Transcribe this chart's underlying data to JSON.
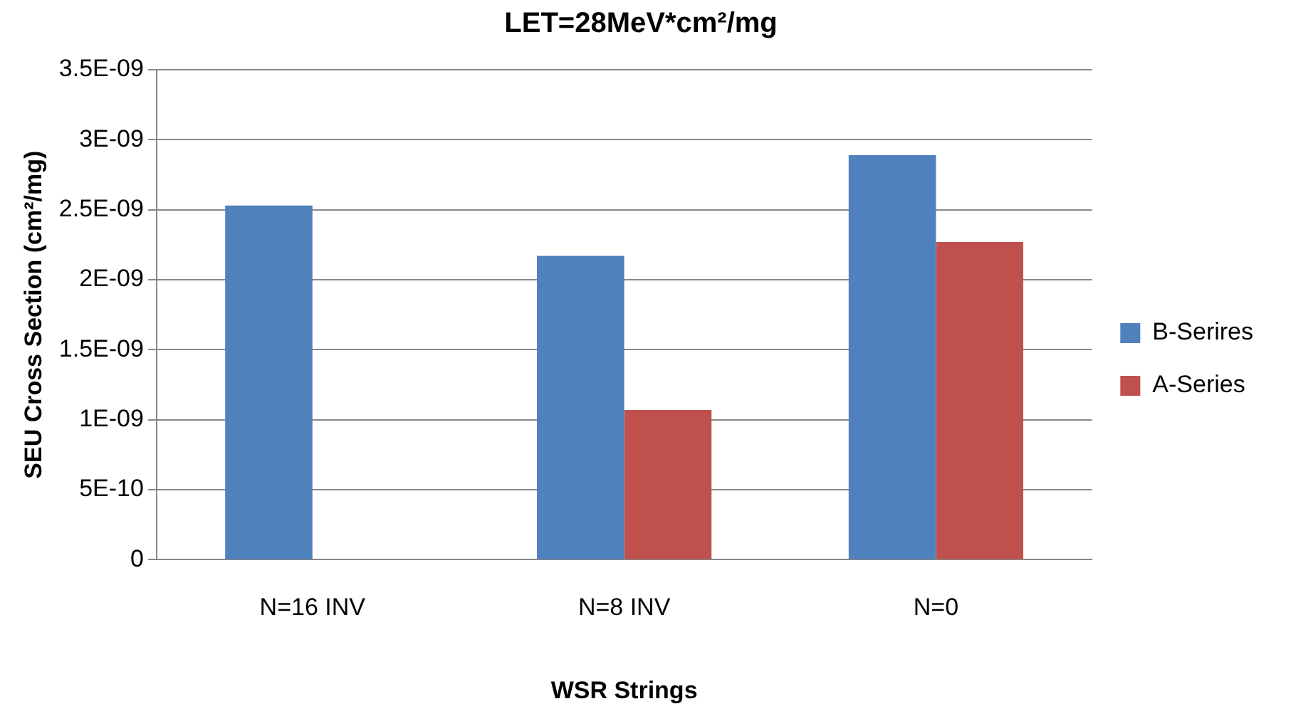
{
  "chart_data": {
    "type": "bar",
    "title": "LET=28MeV*cm²/mg",
    "xlabel": "WSR Strings",
    "ylabel": "SEU Cross Section (cm²/mg)",
    "categories": [
      "N=16 INV",
      "N=8 INV",
      "N=0"
    ],
    "series": [
      {
        "name": "B-Serires",
        "color": "#4f81bd",
        "values": [
          2.53e-09,
          2.17e-09,
          2.89e-09
        ]
      },
      {
        "name": "A-Series",
        "color": "#c0504d",
        "values": [
          null,
          1.07e-09,
          2.27e-09
        ]
      }
    ],
    "ylim": [
      0,
      3.5e-09
    ],
    "yticks": [
      0,
      {
        "value": 5e-10,
        "label": "5E-10"
      },
      {
        "value": 1e-09,
        "label": "1E-09"
      },
      {
        "value": 1.5e-09,
        "label": "1.5E-09"
      },
      {
        "value": 2e-09,
        "label": "2E-09"
      },
      {
        "value": 2.5e-09,
        "label": "2.5E-09"
      },
      {
        "value": 3e-09,
        "label": "3E-09"
      },
      {
        "value": 3.5e-09,
        "label": "3.5E-09"
      }
    ],
    "grid": "y",
    "legend": "right"
  }
}
